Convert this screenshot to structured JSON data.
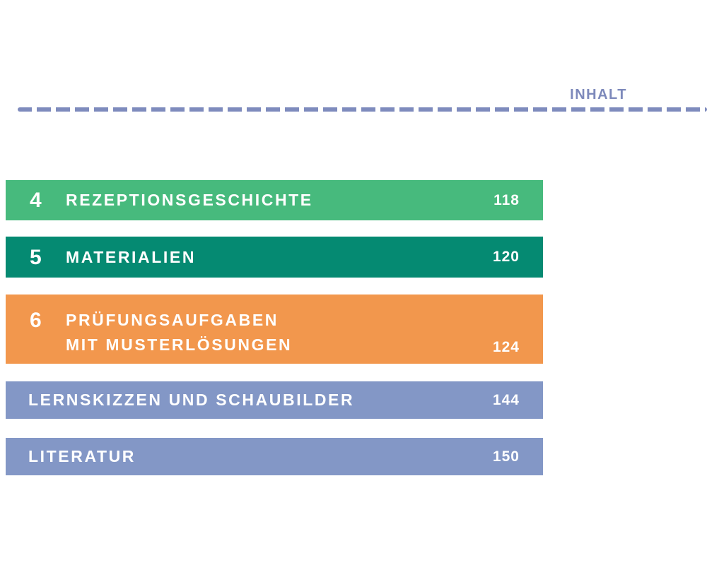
{
  "header": {
    "label": "INHALT",
    "color": "#7d89bb",
    "rule_color": "#7e8bbd"
  },
  "toc": {
    "entries": [
      {
        "number": "4",
        "title": "REZEPTIONSGESCHICHTE",
        "page": "118",
        "color": "#47ba7d"
      },
      {
        "number": "5",
        "title": "MATERIALIEN",
        "page": "120",
        "color": "#058a72"
      },
      {
        "number": "6",
        "title": "PRÜFUNGSAUFGABEN",
        "title_line2": "MIT MUSTERLÖSUNGEN",
        "page": "124",
        "color": "#f2974d"
      },
      {
        "title": "LERNSKIZZEN UND SCHAUBILDER",
        "page": "144",
        "color": "#8397c6"
      },
      {
        "title": "LITERATUR",
        "page": "150",
        "color": "#8397c6"
      }
    ],
    "text_color": "#ffffff"
  }
}
